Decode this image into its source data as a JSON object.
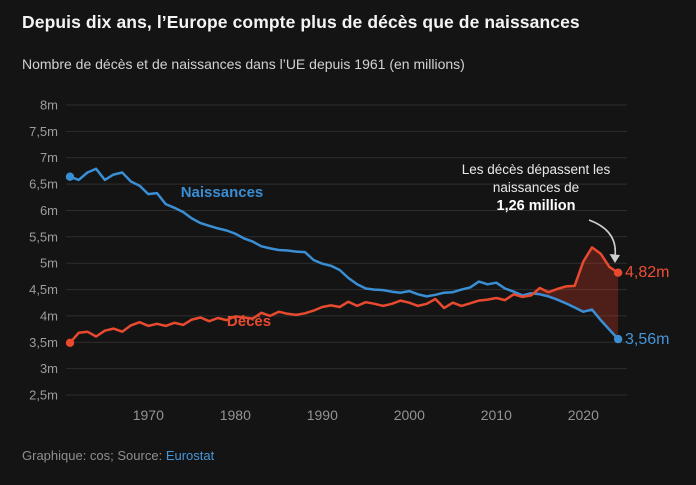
{
  "header": {
    "title": "Depuis dix ans, l’Europe compte plus de décès que de naissances",
    "subtitle": "Nombre de décès et de naissances dans l’UE depuis 1961 (en millions)"
  },
  "chart_data": {
    "type": "line",
    "x_start_year": 1961,
    "x_end_year": 2024,
    "x_tick_years": [
      1970,
      1980,
      1990,
      2000,
      2010,
      2020
    ],
    "y_ticks": [
      {
        "v": 8,
        "label": "8m"
      },
      {
        "v": 7.5,
        "label": "7,5m"
      },
      {
        "v": 7,
        "label": "7m"
      },
      {
        "v": 6.5,
        "label": "6,5m"
      },
      {
        "v": 6,
        "label": "6m"
      },
      {
        "v": 5.5,
        "label": "5,5m"
      },
      {
        "v": 5,
        "label": "5m"
      },
      {
        "v": 4.5,
        "label": "4,5m"
      },
      {
        "v": 4,
        "label": "4m"
      },
      {
        "v": 3.5,
        "label": "3,5m"
      },
      {
        "v": 3,
        "label": "3m"
      },
      {
        "v": 2.5,
        "label": "2,5m"
      }
    ],
    "ylim": [
      2.5,
      8
    ],
    "grid": true,
    "legend_position": "inline-labels",
    "series": [
      {
        "name": "Naissances",
        "color": "#3a8ed4",
        "end_label": "3,56m",
        "values": [
          6.64,
          6.58,
          6.72,
          6.79,
          6.58,
          6.68,
          6.72,
          6.55,
          6.47,
          6.31,
          6.33,
          6.12,
          6.05,
          5.97,
          5.85,
          5.76,
          5.71,
          5.66,
          5.62,
          5.56,
          5.47,
          5.41,
          5.32,
          5.28,
          5.25,
          5.24,
          5.22,
          5.21,
          5.06,
          4.99,
          4.95,
          4.87,
          4.72,
          4.6,
          4.52,
          4.5,
          4.49,
          4.46,
          4.44,
          4.47,
          4.41,
          4.37,
          4.4,
          4.44,
          4.45,
          4.5,
          4.54,
          4.65,
          4.6,
          4.63,
          4.52,
          4.46,
          4.39,
          4.43,
          4.41,
          4.37,
          4.31,
          4.24,
          4.16,
          4.08,
          4.12,
          3.92,
          3.74,
          3.56
        ]
      },
      {
        "name": "Décès",
        "color": "#e84a30",
        "end_label": "4,82m",
        "values": [
          3.49,
          3.68,
          3.7,
          3.61,
          3.72,
          3.76,
          3.7,
          3.82,
          3.88,
          3.81,
          3.85,
          3.81,
          3.87,
          3.83,
          3.93,
          3.97,
          3.9,
          3.96,
          3.92,
          3.99,
          3.97,
          3.95,
          4.06,
          4.0,
          4.08,
          4.04,
          4.02,
          4.05,
          4.1,
          4.17,
          4.2,
          4.17,
          4.27,
          4.19,
          4.26,
          4.23,
          4.19,
          4.23,
          4.29,
          4.25,
          4.19,
          4.23,
          4.32,
          4.15,
          4.25,
          4.19,
          4.24,
          4.29,
          4.31,
          4.34,
          4.3,
          4.41,
          4.36,
          4.39,
          4.53,
          4.45,
          4.51,
          4.56,
          4.57,
          5.03,
          5.3,
          5.18,
          4.93,
          4.82
        ]
      }
    ],
    "deficit_fill_color": "rgba(214,58,38,0.30)",
    "annotation": {
      "line1": "Les décès dépassent les",
      "line2": "naissances de",
      "line3": "1,26 million"
    }
  },
  "footer": {
    "credit": "Graphique: cos; Source: ",
    "source_link": "Eurostat"
  },
  "colors": {
    "background": "#141414",
    "births_blue": "#3a8ed4",
    "deaths_red": "#e84a30",
    "link_blue": "#4596d9"
  }
}
